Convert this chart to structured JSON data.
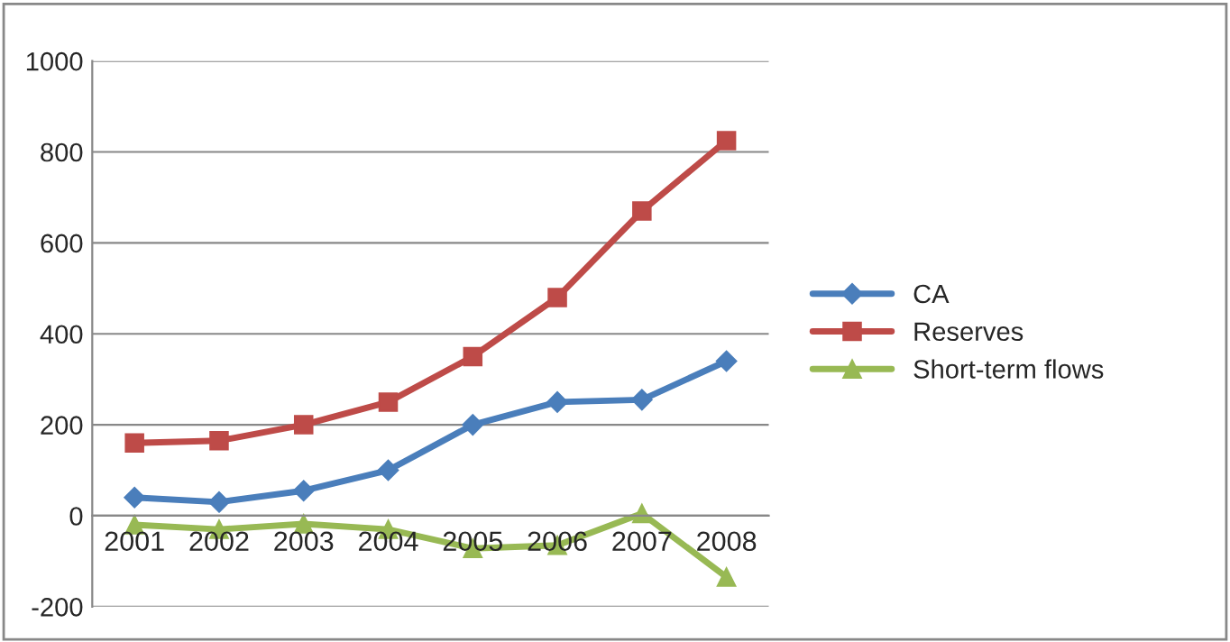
{
  "chart_data": {
    "type": "line",
    "categories": [
      "2001",
      "2002",
      "2003",
      "2004",
      "2005",
      "2006",
      "2007",
      "2008"
    ],
    "series": [
      {
        "name": "CA",
        "color": "#4a7ebb",
        "marker": "diamond",
        "values": [
          40,
          30,
          55,
          100,
          200,
          250,
          255,
          340
        ]
      },
      {
        "name": "Reserves",
        "color": "#be4b48",
        "marker": "square",
        "values": [
          160,
          165,
          200,
          250,
          350,
          480,
          670,
          825
        ]
      },
      {
        "name": "Short-term flows",
        "color": "#98b954",
        "marker": "triangle",
        "values": [
          -20,
          -30,
          -18,
          -30,
          -72,
          -65,
          5,
          -135
        ]
      }
    ],
    "ylim": [
      -200,
      1000
    ],
    "yticks": [
      -200,
      0,
      200,
      400,
      600,
      800,
      1000
    ],
    "grid": "y",
    "legend": "right",
    "line_style": "solid"
  }
}
